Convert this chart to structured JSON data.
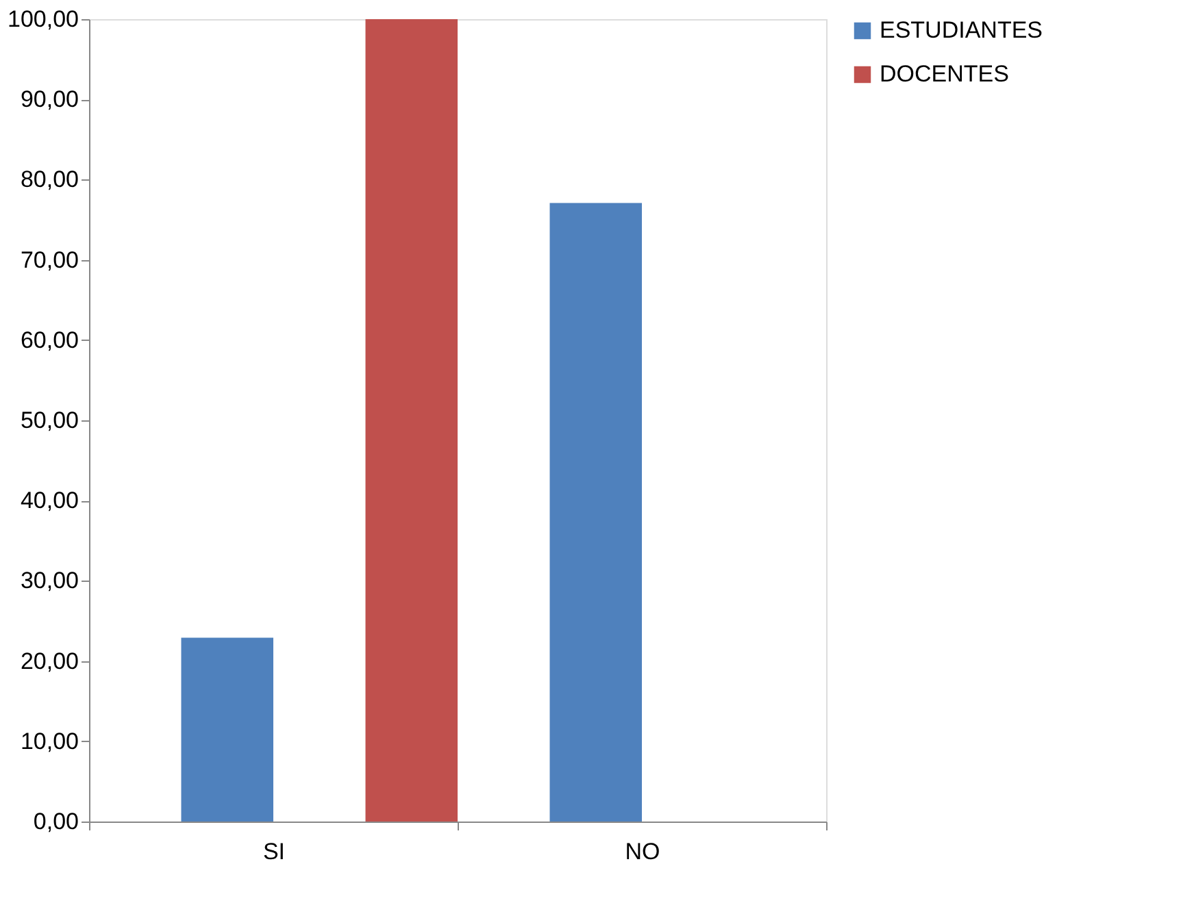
{
  "chart_data": {
    "type": "bar",
    "categories": [
      "SI",
      "NO"
    ],
    "series": [
      {
        "name": "ESTUDIANTES",
        "color": "#4f81bd",
        "values": [
          22.9,
          77.1
        ]
      },
      {
        "name": "DOCENTES",
        "color": "#c0504d",
        "values": [
          100,
          0
        ]
      }
    ],
    "ylim": [
      0,
      100
    ],
    "yticks": [
      {
        "value": 0,
        "label": "0,00"
      },
      {
        "value": 10,
        "label": "10,00"
      },
      {
        "value": 20,
        "label": "20,00"
      },
      {
        "value": 30,
        "label": "30,00"
      },
      {
        "value": 40,
        "label": "40,00"
      },
      {
        "value": 50,
        "label": "50,00"
      },
      {
        "value": 60,
        "label": "60,00"
      },
      {
        "value": 70,
        "label": "70,00"
      },
      {
        "value": 80,
        "label": "80,00"
      },
      {
        "value": 90,
        "label": "90,00"
      },
      {
        "value": 100,
        "label": "100,00"
      }
    ],
    "grid": false,
    "legend": "right"
  }
}
